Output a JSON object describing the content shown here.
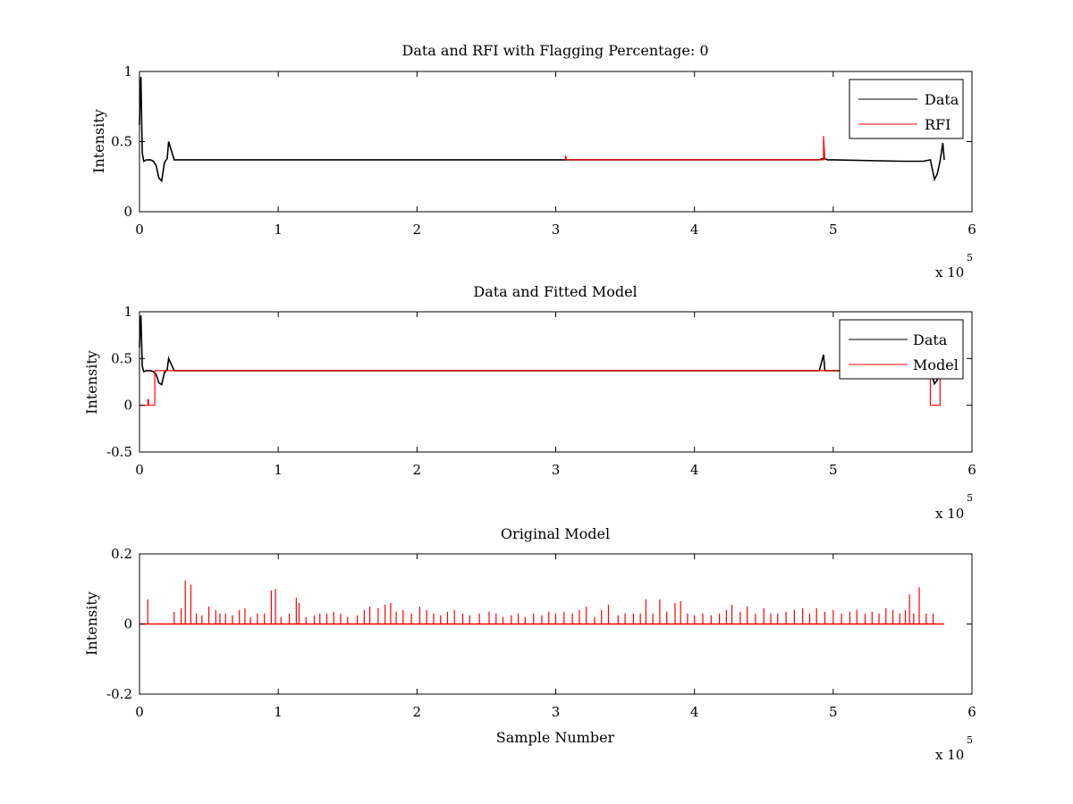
{
  "chart_data": [
    {
      "type": "line",
      "title": "Data and RFI with Flagging Percentage: 0",
      "xlabel": "",
      "ylabel": "Intensity",
      "xlim": [
        0,
        6
      ],
      "ylim": [
        0,
        1
      ],
      "xticks": [
        "0",
        "1",
        "2",
        "3",
        "4",
        "5",
        "6"
      ],
      "yticks": [
        "0",
        "0.5",
        "1"
      ],
      "x_exponent": "x 10",
      "x_exponent_power": "5",
      "legend": "top-right",
      "series": [
        {
          "name": "Data",
          "color": "#000000",
          "x": [
            0.0,
            0.005,
            0.01,
            0.015,
            0.02,
            0.03,
            0.05,
            0.08,
            0.1,
            0.12,
            0.14,
            0.16,
            0.18,
            0.2,
            0.21,
            0.25,
            1.0,
            2.0,
            3.0,
            4.0,
            4.9,
            4.93,
            4.96,
            5.0,
            5.5,
            5.6,
            5.65,
            5.7,
            5.73,
            5.75,
            5.77,
            5.79,
            5.8
          ],
          "y": [
            0.62,
            0.85,
            0.96,
            0.7,
            0.42,
            0.36,
            0.37,
            0.37,
            0.36,
            0.33,
            0.24,
            0.22,
            0.35,
            0.38,
            0.5,
            0.37,
            0.37,
            0.37,
            0.37,
            0.37,
            0.37,
            0.38,
            0.37,
            0.37,
            0.36,
            0.36,
            0.36,
            0.37,
            0.23,
            0.27,
            0.36,
            0.49,
            0.37
          ]
        },
        {
          "name": "RFI",
          "color": "#ff0000",
          "x": [
            3.07,
            3.07,
            3.08,
            4.93,
            4.93,
            4.94
          ],
          "y": [
            0.37,
            0.4,
            0.37,
            0.37,
            0.54,
            0.37
          ]
        }
      ]
    },
    {
      "type": "line",
      "title": "Data and Fitted Model",
      "xlabel": "",
      "ylabel": "Intensity",
      "xlim": [
        0,
        6
      ],
      "ylim": [
        -0.5,
        1
      ],
      "xticks": [
        "0",
        "1",
        "2",
        "3",
        "4",
        "5",
        "6"
      ],
      "yticks": [
        "-0.5",
        "0",
        "0.5",
        "1"
      ],
      "x_exponent": "x 10",
      "x_exponent_power": "5",
      "legend": "top-right",
      "series": [
        {
          "name": "Data",
          "color": "#000000",
          "x": [
            0.0,
            0.005,
            0.01,
            0.015,
            0.02,
            0.03,
            0.05,
            0.08,
            0.1,
            0.12,
            0.14,
            0.16,
            0.18,
            0.2,
            0.21,
            0.25,
            1.0,
            2.0,
            3.0,
            4.0,
            4.9,
            4.93,
            4.94,
            4.96,
            5.0,
            5.5,
            5.6,
            5.65,
            5.7,
            5.73,
            5.75,
            5.77,
            5.79,
            5.8
          ],
          "y": [
            0.62,
            0.85,
            0.96,
            0.7,
            0.42,
            0.36,
            0.37,
            0.37,
            0.36,
            0.33,
            0.24,
            0.22,
            0.35,
            0.38,
            0.5,
            0.37,
            0.37,
            0.37,
            0.37,
            0.37,
            0.37,
            0.54,
            0.37,
            0.37,
            0.37,
            0.36,
            0.36,
            0.36,
            0.37,
            0.23,
            0.27,
            0.36,
            0.49,
            0.37
          ]
        },
        {
          "name": "Model",
          "color": "#ff0000",
          "x": [
            0.0,
            0.06,
            0.06,
            0.065,
            0.065,
            0.11,
            0.11,
            0.12,
            0.5,
            1.0,
            2.0,
            3.0,
            4.0,
            5.0,
            5.5,
            5.7,
            5.7,
            5.77,
            5.77,
            5.8
          ],
          "y": [
            0.0,
            0.0,
            0.06,
            0.06,
            0.0,
            0.0,
            0.37,
            0.37,
            0.37,
            0.37,
            0.37,
            0.37,
            0.37,
            0.37,
            0.37,
            0.37,
            0.0,
            0.0,
            0.37,
            0.37
          ]
        }
      ]
    },
    {
      "type": "line",
      "title": "Original Model",
      "xlabel": "Sample Number",
      "ylabel": "Intensity",
      "xlim": [
        0,
        6
      ],
      "ylim": [
        -0.2,
        0.2
      ],
      "xticks": [
        "0",
        "1",
        "2",
        "3",
        "4",
        "5",
        "6"
      ],
      "yticks": [
        "-0.2",
        "0",
        "0.2"
      ],
      "x_exponent": "x 10",
      "x_exponent_power": "5",
      "baseline": 0,
      "x_end": 5.8,
      "series": [
        {
          "color": "#ff0000",
          "spike_x": [
            0.06,
            0.25,
            0.3,
            0.33,
            0.37,
            0.41,
            0.45,
            0.5,
            0.55,
            0.58,
            0.62,
            0.67,
            0.72,
            0.76,
            0.8,
            0.85,
            0.9,
            0.95,
            0.98,
            1.02,
            1.08,
            1.13,
            1.15,
            1.2,
            1.26,
            1.3,
            1.35,
            1.4,
            1.45,
            1.5,
            1.57,
            1.62,
            1.66,
            1.72,
            1.77,
            1.81,
            1.85,
            1.9,
            1.96,
            2.02,
            2.07,
            2.12,
            2.17,
            2.22,
            2.27,
            2.33,
            2.38,
            2.45,
            2.52,
            2.57,
            2.62,
            2.68,
            2.73,
            2.78,
            2.84,
            2.9,
            2.95,
            3.0,
            3.06,
            3.12,
            3.17,
            3.22,
            3.28,
            3.33,
            3.38,
            3.45,
            3.5,
            3.56,
            3.61,
            3.65,
            3.7,
            3.75,
            3.8,
            3.86,
            3.9,
            3.95,
            4.0,
            4.06,
            4.12,
            4.18,
            4.23,
            4.27,
            4.33,
            4.38,
            4.44,
            4.5,
            4.55,
            4.6,
            4.66,
            4.72,
            4.78,
            4.83,
            4.88,
            4.94,
            5.0,
            5.06,
            5.12,
            5.17,
            5.23,
            5.28,
            5.33,
            5.38,
            5.43,
            5.48,
            5.52,
            5.55,
            5.58,
            5.62,
            5.67,
            5.72
          ],
          "spike_y": [
            0.07,
            0.035,
            0.045,
            0.124,
            0.112,
            0.03,
            0.025,
            0.05,
            0.04,
            0.03,
            0.03,
            0.025,
            0.04,
            0.045,
            0.02,
            0.03,
            0.03,
            0.096,
            0.1,
            0.02,
            0.03,
            0.075,
            0.06,
            0.02,
            0.025,
            0.03,
            0.03,
            0.035,
            0.03,
            0.02,
            0.025,
            0.04,
            0.05,
            0.045,
            0.055,
            0.06,
            0.035,
            0.04,
            0.03,
            0.05,
            0.04,
            0.03,
            0.025,
            0.035,
            0.04,
            0.03,
            0.025,
            0.03,
            0.035,
            0.03,
            0.02,
            0.025,
            0.03,
            0.02,
            0.03,
            0.025,
            0.035,
            0.03,
            0.035,
            0.03,
            0.04,
            0.05,
            0.02,
            0.04,
            0.055,
            0.025,
            0.03,
            0.03,
            0.03,
            0.07,
            0.03,
            0.07,
            0.035,
            0.06,
            0.065,
            0.03,
            0.025,
            0.03,
            0.025,
            0.03,
            0.04,
            0.055,
            0.035,
            0.05,
            0.03,
            0.045,
            0.03,
            0.03,
            0.035,
            0.04,
            0.045,
            0.03,
            0.045,
            0.035,
            0.04,
            0.03,
            0.035,
            0.04,
            0.03,
            0.035,
            0.03,
            0.045,
            0.04,
            0.03,
            0.04,
            0.085,
            0.03,
            0.105,
            0.03,
            0.03
          ]
        }
      ]
    }
  ]
}
